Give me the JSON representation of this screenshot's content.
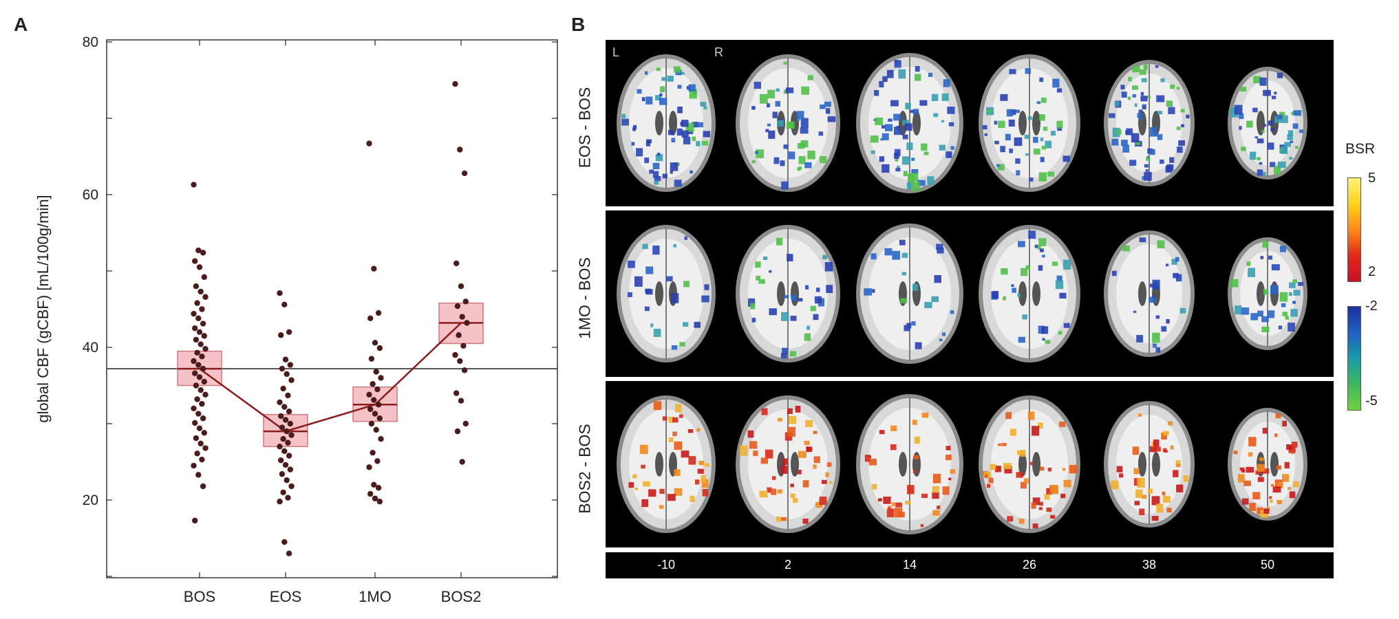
{
  "panel_labels": {
    "a": "A",
    "b": "B"
  },
  "chart_data": {
    "type": "scatter",
    "ylabel": "global CBF  (gCBF)  [mL/100g/min]",
    "xlabel": "",
    "categories": [
      "BOS",
      "EOS",
      "1MO",
      "BOS2"
    ],
    "ylim": [
      10,
      80
    ],
    "yticks": [
      20,
      40,
      60,
      80
    ],
    "reference_line": 37.2,
    "colors": {
      "box_fill": "#f3b9bd",
      "box_edge": "#d07880",
      "line": "#8b1a1a",
      "dots": "#4a1c1c"
    },
    "boxes": [
      {
        "category": "BOS",
        "mean": 37.2,
        "lower": 35.0,
        "upper": 39.5
      },
      {
        "category": "EOS",
        "mean": 29.0,
        "lower": 27.0,
        "upper": 31.2
      },
      {
        "category": "1MO",
        "mean": 32.5,
        "lower": 30.3,
        "upper": 34.8
      },
      {
        "category": "BOS2",
        "mean": 43.2,
        "lower": 40.5,
        "upper": 45.8
      }
    ],
    "points": {
      "BOS": [
        61.3,
        52.7,
        52.4,
        51.3,
        50.5,
        49.2,
        48.0,
        47.3,
        46.6,
        45.8,
        45.0,
        44.4,
        43.8,
        43.1,
        42.5,
        42.0,
        41.5,
        41.0,
        40.4,
        39.8,
        39.3,
        38.8,
        38.2,
        37.7,
        37.2,
        36.6,
        36.1,
        35.5,
        35.0,
        34.4,
        33.8,
        33.2,
        32.6,
        32.0,
        31.3,
        30.7,
        30.1,
        29.4,
        28.8,
        28.1,
        27.4,
        26.8,
        26.1,
        25.3,
        24.5,
        23.3,
        21.8,
        17.3
      ],
      "EOS": [
        47.1,
        45.6,
        42.0,
        41.6,
        38.4,
        37.7,
        37.2,
        36.5,
        35.7,
        34.6,
        33.7,
        32.8,
        32.2,
        31.6,
        31.0,
        30.5,
        30.0,
        29.5,
        29.0,
        28.5,
        28.0,
        27.5,
        27.0,
        26.4,
        25.8,
        25.2,
        24.6,
        24.0,
        23.4,
        22.6,
        21.8,
        21.0,
        20.3,
        19.8,
        14.5,
        13.0
      ],
      "1MO": [
        66.7,
        50.3,
        44.5,
        43.8,
        40.6,
        39.9,
        38.5,
        36.8,
        36.0,
        35.2,
        34.5,
        33.8,
        33.1,
        32.5,
        31.9,
        31.3,
        30.7,
        30.0,
        29.2,
        28.0,
        26.2,
        25.1,
        24.3,
        22.0,
        21.6,
        20.8,
        20.2,
        19.8
      ],
      "BOS2": [
        74.5,
        65.9,
        62.8,
        51.0,
        48.0,
        46.0,
        45.4,
        44.0,
        43.2,
        41.6,
        40.2,
        39.0,
        38.2,
        37.0,
        34.0,
        33.0,
        30.0,
        29.0,
        25.0
      ]
    }
  },
  "brain_panel": {
    "rows": [
      {
        "label": "EOS - BOS",
        "color": "blue-green"
      },
      {
        "label": "1MO - BOS",
        "color": "blue-green"
      },
      {
        "label": "BOS2 - BOS",
        "color": "red-orange"
      }
    ],
    "slices": [
      "-10",
      "2",
      "14",
      "26",
      "38",
      "50"
    ],
    "orientation_left": "L",
    "orientation_right": "R",
    "colorbar_title": "BSR",
    "pos_ticks": {
      "top": "5",
      "bottom": "2"
    },
    "neg_ticks": {
      "top": "-2",
      "bottom": "-5"
    }
  }
}
